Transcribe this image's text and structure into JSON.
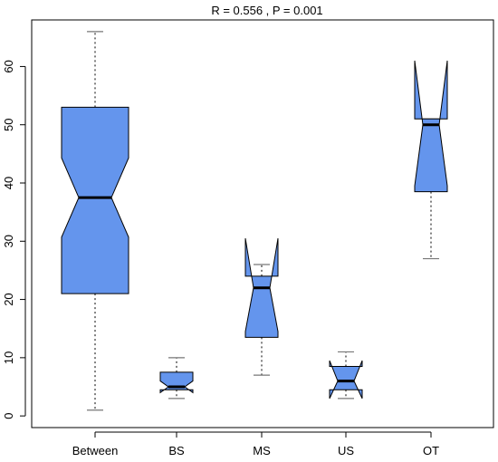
{
  "chart_data": {
    "type": "boxplot",
    "title": "R =  0.556 ,  P =  0.001",
    "xlabel": "",
    "ylabel": "",
    "ylim": [
      -2,
      68
    ],
    "yticks": [
      0,
      10,
      20,
      30,
      40,
      50,
      60
    ],
    "notched": true,
    "box_color": "#6495ED",
    "categories": [
      "Between",
      "BS",
      "MS",
      "US",
      "OT"
    ],
    "boxes": [
      {
        "label": "Between",
        "whisker_low": 1.0,
        "q1": 21.0,
        "median": 37.5,
        "q3": 53.0,
        "whisker_high": 66.0,
        "notch_low": 30.7,
        "notch_high": 44.3
      },
      {
        "label": "BS",
        "whisker_low": 3.0,
        "q1": 4.5,
        "median": 5.0,
        "q3": 7.5,
        "whisker_high": 10.0,
        "notch_low": 4.0,
        "notch_high": 6.0
      },
      {
        "label": "MS",
        "whisker_low": 7.0,
        "q1": 13.5,
        "median": 22.0,
        "q3": 24.0,
        "whisker_high": 26.0,
        "notch_low": 14.5,
        "notch_high": 30.5
      },
      {
        "label": "US",
        "whisker_low": 3.0,
        "q1": 4.5,
        "median": 6.0,
        "q3": 8.5,
        "whisker_high": 11.0,
        "notch_low": 3.0,
        "notch_high": 9.5
      },
      {
        "label": "OT",
        "whisker_low": 27.0,
        "q1": 38.5,
        "median": 50.0,
        "q3": 51.0,
        "whisker_high": 51.0,
        "notch_low": 39.5,
        "notch_high": 61.0
      }
    ]
  }
}
